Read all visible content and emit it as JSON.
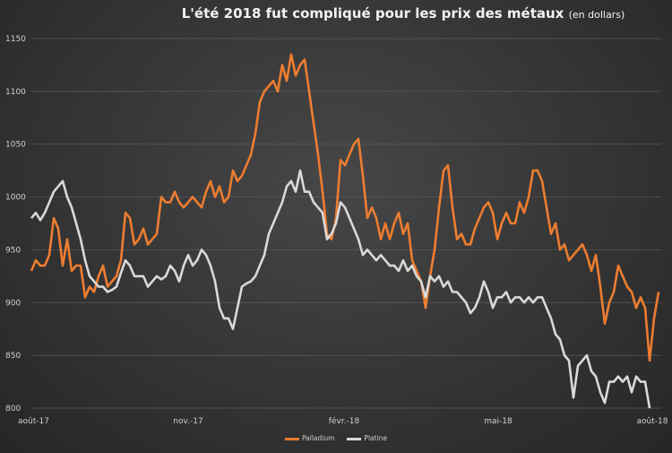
{
  "chart_data": {
    "type": "line",
    "title": "L'été 2018 fut compliqué pour les prix des métaux",
    "subtitle": "(en dollars)",
    "xlabel": "",
    "ylabel": "",
    "x_range": [
      "2017-08-01",
      "2018-08-03"
    ],
    "x_ticks": [
      "août-17",
      "nov.-17",
      "févr.-18",
      "mai-18",
      "août-18"
    ],
    "ylim": [
      800,
      1150
    ],
    "y_ticks": [
      "800",
      "850",
      "900",
      "950",
      "1000",
      "1050",
      "1100",
      "1150"
    ],
    "grid": true,
    "legend_position": "bottom",
    "series": [
      {
        "name": "Palladium",
        "color": "#ed7d31",
        "values": [
          930,
          940,
          935,
          935,
          945,
          980,
          970,
          935,
          960,
          930,
          935,
          935,
          905,
          915,
          910,
          925,
          935,
          915,
          920,
          925,
          940,
          985,
          980,
          955,
          960,
          970,
          955,
          960,
          965,
          1000,
          995,
          995,
          1005,
          995,
          990,
          995,
          1000,
          995,
          990,
          1005,
          1015,
          1000,
          1010,
          995,
          1000,
          1025,
          1015,
          1020,
          1030,
          1040,
          1060,
          1090,
          1100,
          1105,
          1110,
          1100,
          1125,
          1110,
          1135,
          1115,
          1125,
          1130,
          1100,
          1070,
          1040,
          1005,
          965,
          960,
          980,
          1035,
          1030,
          1040,
          1050,
          1055,
          1020,
          980,
          990,
          980,
          960,
          975,
          960,
          975,
          985,
          965,
          975,
          940,
          930,
          920,
          895,
          925,
          950,
          990,
          1025,
          1030,
          990,
          960,
          965,
          955,
          955,
          970,
          980,
          990,
          995,
          985,
          960,
          975,
          985,
          975,
          975,
          995,
          985,
          1000,
          1025,
          1025,
          1015,
          990,
          965,
          975,
          950,
          955,
          940,
          945,
          950,
          955,
          945,
          930,
          945,
          915,
          880,
          900,
          910,
          935,
          925,
          915,
          910,
          895,
          905,
          895,
          845,
          885,
          910
        ]
      },
      {
        "name": "Platine",
        "color": "#d9d9d9",
        "values": [
          980,
          985,
          978,
          985,
          995,
          1005,
          1010,
          1015,
          1000,
          990,
          975,
          960,
          940,
          925,
          920,
          915,
          915,
          910,
          912,
          915,
          928,
          940,
          935,
          925,
          925,
          925,
          915,
          920,
          925,
          922,
          925,
          935,
          930,
          920,
          935,
          945,
          935,
          940,
          950,
          945,
          935,
          920,
          895,
          885,
          885,
          875,
          895,
          915,
          918,
          920,
          925,
          935,
          945,
          965,
          975,
          985,
          995,
          1010,
          1015,
          1005,
          1025,
          1005,
          1005,
          995,
          990,
          985,
          960,
          965,
          975,
          995,
          990,
          980,
          970,
          960,
          945,
          950,
          945,
          940,
          945,
          940,
          935,
          935,
          930,
          940,
          930,
          935,
          925,
          920,
          905,
          925,
          920,
          925,
          915,
          920,
          910,
          910,
          905,
          900,
          890,
          895,
          905,
          920,
          910,
          895,
          905,
          905,
          910,
          900,
          905,
          905,
          900,
          905,
          900,
          905,
          905,
          895,
          885,
          870,
          865,
          850,
          845,
          810,
          840,
          845,
          850,
          835,
          830,
          815,
          805,
          825,
          825,
          830,
          825,
          830,
          815,
          830,
          825,
          825,
          800
        ]
      }
    ]
  }
}
